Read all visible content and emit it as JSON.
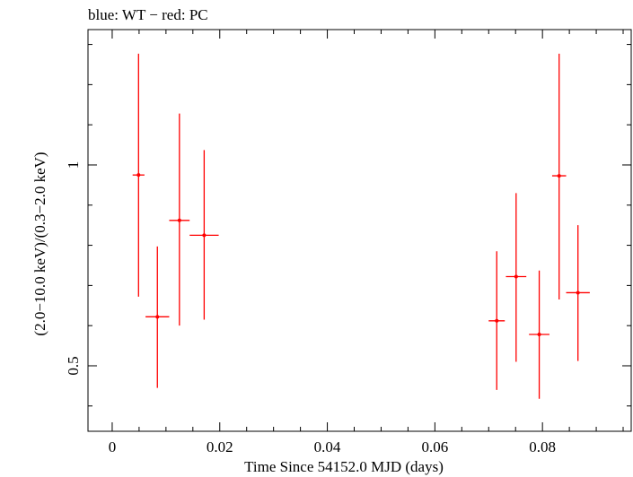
{
  "chart_data": {
    "type": "scatter",
    "title": "blue: WT − red: PC",
    "xlabel": "Time Since 54152.0 MJD (days)",
    "ylabel": "(2.0−10.0 keV)/(0.3−2.0 keV)",
    "xlim": [
      -0.0045,
      0.0965
    ],
    "ylim": [
      0.337,
      1.337
    ],
    "x_ticks": [
      0,
      0.02,
      0.04,
      0.06,
      0.08
    ],
    "x_tick_labels": [
      "0",
      "0.02",
      "0.04",
      "0.06",
      "0.08"
    ],
    "y_ticks": [
      0.5,
      1
    ],
    "y_tick_labels": [
      "0.5",
      "1"
    ],
    "grid": false,
    "series": [
      {
        "name": "PC",
        "color": "#ff0000",
        "points": [
          {
            "x": 0.0049,
            "xerr": 0.0011,
            "y": 0.975,
            "ylo": 0.672,
            "yhi": 1.277
          },
          {
            "x": 0.0084,
            "xerr": 0.0022,
            "y": 0.622,
            "ylo": 0.445,
            "yhi": 0.797
          },
          {
            "x": 0.0125,
            "xerr": 0.0019,
            "y": 0.862,
            "ylo": 0.6,
            "yhi": 1.128
          },
          {
            "x": 0.0171,
            "xerr": 0.0027,
            "y": 0.825,
            "ylo": 0.615,
            "yhi": 1.037
          },
          {
            "x": 0.0715,
            "xerr": 0.0015,
            "y": 0.612,
            "ylo": 0.44,
            "yhi": 0.785
          },
          {
            "x": 0.0751,
            "xerr": 0.0019,
            "y": 0.722,
            "ylo": 0.51,
            "yhi": 0.93
          },
          {
            "x": 0.0794,
            "xerr": 0.0019,
            "y": 0.578,
            "ylo": 0.418,
            "yhi": 0.737
          },
          {
            "x": 0.0831,
            "xerr": 0.0013,
            "y": 0.973,
            "ylo": 0.665,
            "yhi": 1.277
          },
          {
            "x": 0.0866,
            "xerr": 0.0022,
            "y": 0.682,
            "ylo": 0.512,
            "yhi": 0.85
          }
        ]
      }
    ]
  }
}
